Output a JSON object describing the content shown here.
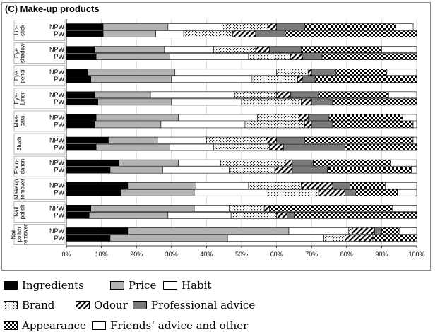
{
  "panel_title": "(C) Make-up products",
  "chart_data": {
    "type": "bar",
    "orientation": "horizontal",
    "stacked": true,
    "title": "(C) Make-up products",
    "xlim": [
      0,
      100
    ],
    "x_ticks": [
      "0%",
      "10%",
      "20%",
      "30%",
      "40%",
      "50%",
      "60%",
      "70%",
      "80%",
      "90%",
      "100%"
    ],
    "legend_position": "bottom",
    "series_names": [
      "Ingredients",
      "Price",
      "Habit",
      "Brand",
      "Odour",
      "Professional advice",
      "Appearance",
      "Friends’ advice and other"
    ],
    "groups": [
      {
        "label": [
          "Lip-",
          "stick"
        ],
        "bars": [
          {
            "label": "NPW",
            "values": [
              10.5,
              18.5,
              15.5,
              13,
              2.5,
              8,
              26,
              5
            ]
          },
          {
            "label": "PW",
            "values": [
              10.5,
              15,
              8,
              14,
              6.5,
              8.5,
              37.5,
              0
            ]
          }
        ]
      },
      {
        "label": [
          "Eye",
          "shadow"
        ],
        "bars": [
          {
            "label": "NPW",
            "values": [
              8,
              20,
              14,
              12,
              4,
              9,
              23,
              10
            ]
          },
          {
            "label": "PW",
            "values": [
              8.5,
              21,
              22.5,
              12,
              3.5,
              5.5,
              27,
              0
            ]
          }
        ]
      },
      {
        "label": [
          "Eye",
          "pencil"
        ],
        "bars": [
          {
            "label": "NPW",
            "values": [
              6,
              25,
              29,
              9,
              1,
              7,
              14.5,
              8.5
            ]
          },
          {
            "label": "PW",
            "values": [
              7,
              23,
              23,
              13,
              1.5,
              3.5,
              29,
              0
            ]
          }
        ]
      },
      {
        "label": [
          "Eye-",
          "Liner"
        ],
        "bars": [
          {
            "label": "NPW",
            "values": [
              8,
              16,
              24,
              12,
              4,
              8,
              20,
              8
            ]
          },
          {
            "label": "PW",
            "values": [
              9,
              21,
              20,
              17,
              3,
              6,
              24,
              0
            ]
          }
        ]
      },
      {
        "label": [
          "Mas-",
          "cara"
        ],
        "bars": [
          {
            "label": "NPW",
            "values": [
              8.5,
              23.5,
              22.5,
              12,
              2.5,
              6,
              21,
              4
            ]
          },
          {
            "label": "PW",
            "values": [
              8,
              19,
              24,
              17,
              2,
              6,
              23,
              1
            ]
          }
        ]
      },
      {
        "label": [
          "Blush"
        ],
        "bars": [
          {
            "label": "NPW",
            "values": [
              12,
              14,
              14,
              17,
              3,
              8,
              31,
              1
            ]
          },
          {
            "label": "PW",
            "values": [
              8.5,
              21,
              12.5,
              16,
              4,
              17.5,
              20.5,
              0
            ]
          }
        ]
      },
      {
        "label": [
          "Foun-",
          "dation"
        ],
        "bars": [
          {
            "label": "NPW",
            "values": [
              15,
              17,
              12,
              18.5,
              2,
              6,
              22,
              7.5
            ]
          },
          {
            "label": "PW",
            "values": [
              12.5,
              15,
              19,
              13,
              5,
              10,
              24,
              1.5
            ]
          }
        ]
      },
      {
        "label": [
          "Makeup",
          "remover"
        ],
        "bars": [
          {
            "label": "NPW",
            "values": [
              17.5,
              19.5,
              15,
              15,
              9,
              5,
              10,
              9
            ]
          },
          {
            "label": "PW",
            "values": [
              15.5,
              21,
              21,
              14.5,
              7.5,
              3,
              12,
              5.5
            ]
          }
        ]
      },
      {
        "label": [
          "Nail",
          "polish"
        ],
        "bars": [
          {
            "label": "NPW",
            "values": [
              7,
              29.5,
              10,
              10,
              1.5,
              0,
              35,
              7
            ]
          },
          {
            "label": "PW",
            "values": [
              6.5,
              22.5,
              18,
              13,
              3,
              2,
              35,
              0
            ]
          }
        ]
      },
      {
        "label": [
          "Nail",
          "polish",
          "remover"
        ],
        "bars": [
          {
            "label": "NPW",
            "values": [
              17.5,
              46,
              17,
              1,
              6.5,
              2,
              5,
              5
            ]
          },
          {
            "label": "PW",
            "values": [
              12.5,
              33.5,
              27.5,
              6,
              8,
              0,
              12.5,
              0
            ]
          }
        ]
      }
    ]
  },
  "legend": {
    "items": [
      {
        "label": "Ingredients"
      },
      {
        "label": "Price"
      },
      {
        "label": "Habit"
      },
      {
        "label": "Brand"
      },
      {
        "label": "Odour"
      },
      {
        "label": "Professional advice"
      },
      {
        "label": "Appearance"
      },
      {
        "label": "Friends’ advice and other"
      }
    ]
  }
}
